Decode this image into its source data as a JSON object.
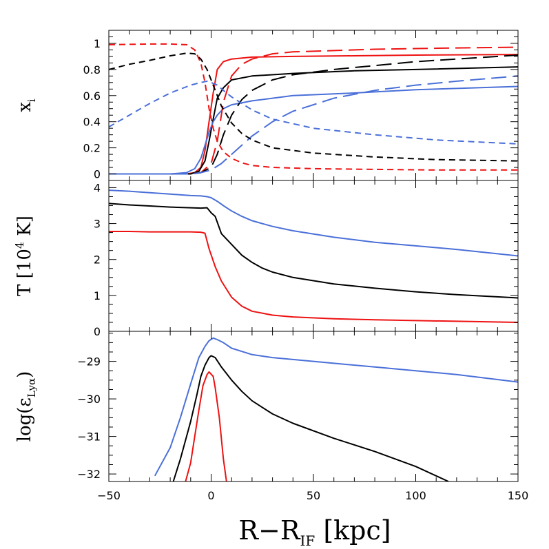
{
  "chart_data": [
    {
      "type": "line",
      "panel": "top",
      "ylabel": "x",
      "ylabel_sub": "i",
      "xlim": [
        -50,
        150
      ],
      "ylim": [
        -0.05,
        1.1
      ],
      "yticks": [
        0,
        0.2,
        0.4,
        0.6,
        0.8,
        1
      ],
      "ytick_labels": [
        "0",
        "0.2",
        "0.4",
        "0.6",
        "0.8",
        "1"
      ],
      "series": [
        {
          "color": "#ee1111",
          "style": "solid",
          "x": [
            -50,
            -20,
            -12,
            -8,
            -5,
            -3,
            -1,
            1,
            3,
            6,
            10,
            20,
            40,
            70,
            100,
            150
          ],
          "y": [
            0,
            0,
            0,
            0.01,
            0.05,
            0.18,
            0.4,
            0.62,
            0.8,
            0.86,
            0.88,
            0.895,
            0.9,
            0.905,
            0.91,
            0.915
          ]
        },
        {
          "color": "#000000",
          "style": "solid",
          "x": [
            -50,
            -20,
            -10,
            -6,
            -3,
            -1,
            1,
            3,
            6,
            10,
            20,
            40,
            70,
            100,
            150
          ],
          "y": [
            0,
            0,
            0,
            0.02,
            0.1,
            0.25,
            0.42,
            0.58,
            0.66,
            0.72,
            0.75,
            0.77,
            0.79,
            0.8,
            0.82
          ]
        },
        {
          "color": "#4a6fd8",
          "style": "solid",
          "x": [
            -50,
            -20,
            -12,
            -8,
            -5,
            -3,
            -1,
            1,
            3,
            6,
            10,
            20,
            40,
            70,
            100,
            150
          ],
          "y": [
            0,
            0,
            0.01,
            0.04,
            0.12,
            0.22,
            0.32,
            0.4,
            0.45,
            0.5,
            0.53,
            0.56,
            0.6,
            0.62,
            0.645,
            0.67
          ]
        },
        {
          "color": "#ee1111",
          "style": "longdash",
          "x": [
            -50,
            -10,
            -5,
            0,
            3,
            6,
            10,
            15,
            20,
            30,
            40,
            60,
            80,
            100,
            120,
            150
          ],
          "y": [
            0,
            0,
            0.01,
            0.08,
            0.25,
            0.55,
            0.75,
            0.84,
            0.88,
            0.92,
            0.935,
            0.945,
            0.955,
            0.96,
            0.965,
            0.97
          ]
        },
        {
          "color": "#000000",
          "style": "longdash",
          "x": [
            -50,
            -10,
            -5,
            0,
            3,
            6,
            10,
            15,
            20,
            30,
            40,
            60,
            80,
            100,
            120,
            150
          ],
          "y": [
            0,
            0,
            0.01,
            0.05,
            0.15,
            0.3,
            0.45,
            0.57,
            0.64,
            0.72,
            0.76,
            0.8,
            0.83,
            0.86,
            0.88,
            0.91
          ]
        },
        {
          "color": "#4a6fd8",
          "style": "longdash",
          "x": [
            -50,
            -10,
            -5,
            0,
            5,
            10,
            15,
            20,
            30,
            40,
            60,
            80,
            100,
            120,
            150
          ],
          "y": [
            0,
            0,
            0.01,
            0.03,
            0.08,
            0.15,
            0.22,
            0.29,
            0.4,
            0.48,
            0.58,
            0.64,
            0.68,
            0.71,
            0.75
          ]
        },
        {
          "color": "#ee1111",
          "style": "shortdash",
          "x": [
            -50,
            -30,
            -20,
            -12,
            -8,
            -5,
            -3,
            -1,
            1,
            3,
            6,
            10,
            15,
            20,
            30,
            50,
            80,
            110,
            150
          ],
          "y": [
            0.99,
            0.995,
            0.995,
            0.99,
            0.95,
            0.85,
            0.7,
            0.5,
            0.35,
            0.25,
            0.17,
            0.12,
            0.085,
            0.065,
            0.05,
            0.04,
            0.035,
            0.03,
            0.03
          ]
        },
        {
          "color": "#000000",
          "style": "shortdash",
          "x": [
            -50,
            -40,
            -30,
            -20,
            -12,
            -8,
            -5,
            -2,
            1,
            5,
            10,
            15,
            20,
            30,
            50,
            80,
            110,
            150
          ],
          "y": [
            0.8,
            0.84,
            0.87,
            0.905,
            0.925,
            0.92,
            0.88,
            0.8,
            0.68,
            0.52,
            0.39,
            0.31,
            0.26,
            0.2,
            0.16,
            0.13,
            0.11,
            0.1
          ]
        },
        {
          "color": "#4a6fd8",
          "style": "shortdash",
          "x": [
            -50,
            -40,
            -30,
            -20,
            -10,
            -5,
            -2,
            0,
            3,
            6,
            10,
            15,
            20,
            30,
            50,
            80,
            110,
            150
          ],
          "y": [
            0.36,
            0.45,
            0.54,
            0.62,
            0.68,
            0.7,
            0.71,
            0.7,
            0.68,
            0.64,
            0.59,
            0.54,
            0.49,
            0.42,
            0.35,
            0.3,
            0.26,
            0.23
          ]
        }
      ]
    },
    {
      "type": "line",
      "panel": "middle",
      "ylabel": "T [10",
      "ylabel_sup": "4",
      "ylabel_end": " K]",
      "xlim": [
        -50,
        150
      ],
      "ylim": [
        0,
        4.2
      ],
      "yticks": [
        0,
        1,
        2,
        3,
        4
      ],
      "ytick_labels": [
        "0",
        "1",
        "2",
        "3",
        "4"
      ],
      "series": [
        {
          "color": "#4a6fd8",
          "style": "solid",
          "x": [
            -50,
            -40,
            -30,
            -20,
            -10,
            -5,
            -2,
            0,
            3,
            6,
            10,
            15,
            20,
            30,
            40,
            60,
            80,
            100,
            120,
            150
          ],
          "y": [
            3.93,
            3.9,
            3.86,
            3.82,
            3.78,
            3.77,
            3.75,
            3.72,
            3.62,
            3.5,
            3.35,
            3.2,
            3.08,
            2.92,
            2.8,
            2.62,
            2.48,
            2.38,
            2.28,
            2.1
          ]
        },
        {
          "color": "#000000",
          "style": "solid",
          "x": [
            -50,
            -40,
            -30,
            -20,
            -10,
            -5,
            -2,
            0,
            2,
            5,
            10,
            15,
            20,
            25,
            30,
            40,
            60,
            80,
            100,
            120,
            150
          ],
          "y": [
            3.56,
            3.52,
            3.49,
            3.46,
            3.44,
            3.43,
            3.44,
            3.3,
            3.2,
            2.72,
            2.42,
            2.12,
            1.92,
            1.76,
            1.65,
            1.5,
            1.32,
            1.2,
            1.1,
            1.02,
            0.93
          ]
        },
        {
          "color": "#ee1111",
          "style": "solid",
          "x": [
            -50,
            -40,
            -30,
            -20,
            -10,
            -5,
            -3,
            -1,
            2,
            5,
            10,
            15,
            20,
            30,
            40,
            60,
            80,
            100,
            120,
            150
          ],
          "y": [
            2.78,
            2.78,
            2.77,
            2.77,
            2.77,
            2.76,
            2.73,
            2.3,
            1.8,
            1.4,
            0.95,
            0.7,
            0.56,
            0.45,
            0.4,
            0.35,
            0.32,
            0.3,
            0.28,
            0.25
          ]
        }
      ]
    },
    {
      "type": "line",
      "panel": "bottom",
      "ylabel": "log(ε",
      "ylabel_sub": "Lyα",
      "ylabel_end": ")",
      "xlabel": "R−R",
      "xlabel_sub": "IF",
      "xlabel_end": " [kpc]",
      "xlim": [
        -50,
        150
      ],
      "ylim": [
        -32.2,
        -28.2
      ],
      "yticks": [
        -32,
        -31,
        -30,
        -29
      ],
      "ytick_labels": [
        "−32",
        "−31",
        "−30",
        "−29"
      ],
      "xticks": [
        -50,
        0,
        50,
        100,
        150
      ],
      "xtick_labels": [
        "−50",
        "0",
        "50",
        "100",
        "150"
      ],
      "series": [
        {
          "color": "#4a6fd8",
          "style": "solid",
          "x": [
            -27.5,
            -20,
            -15,
            -10,
            -6,
            -3,
            -1,
            1,
            3,
            6,
            10,
            20,
            30,
            50,
            80,
            100,
            120,
            150
          ],
          "y": [
            -32.05,
            -31.3,
            -30.5,
            -29.6,
            -28.9,
            -28.6,
            -28.45,
            -28.38,
            -28.42,
            -28.5,
            -28.65,
            -28.82,
            -28.9,
            -29.0,
            -29.15,
            -29.25,
            -29.35,
            -29.55
          ]
        },
        {
          "color": "#000000",
          "style": "solid",
          "x": [
            -18.5,
            -15,
            -10,
            -7,
            -5,
            -3,
            -1,
            0,
            2,
            5,
            10,
            15,
            20,
            30,
            40,
            60,
            80,
            100,
            116
          ],
          "y": [
            -32.2,
            -31.6,
            -30.6,
            -29.9,
            -29.4,
            -29.1,
            -28.9,
            -28.85,
            -28.9,
            -29.15,
            -29.5,
            -29.8,
            -30.05,
            -30.4,
            -30.65,
            -31.05,
            -31.4,
            -31.8,
            -32.2
          ]
        },
        {
          "color": "#ee1111",
          "style": "solid",
          "x": [
            -12.5,
            -10,
            -8,
            -6,
            -4,
            -2,
            -1,
            1,
            2,
            4,
            6,
            7.5
          ],
          "y": [
            -32.2,
            -31.7,
            -31.0,
            -30.3,
            -29.65,
            -29.35,
            -29.28,
            -29.4,
            -29.7,
            -30.5,
            -31.6,
            -32.2
          ]
        }
      ]
    }
  ]
}
